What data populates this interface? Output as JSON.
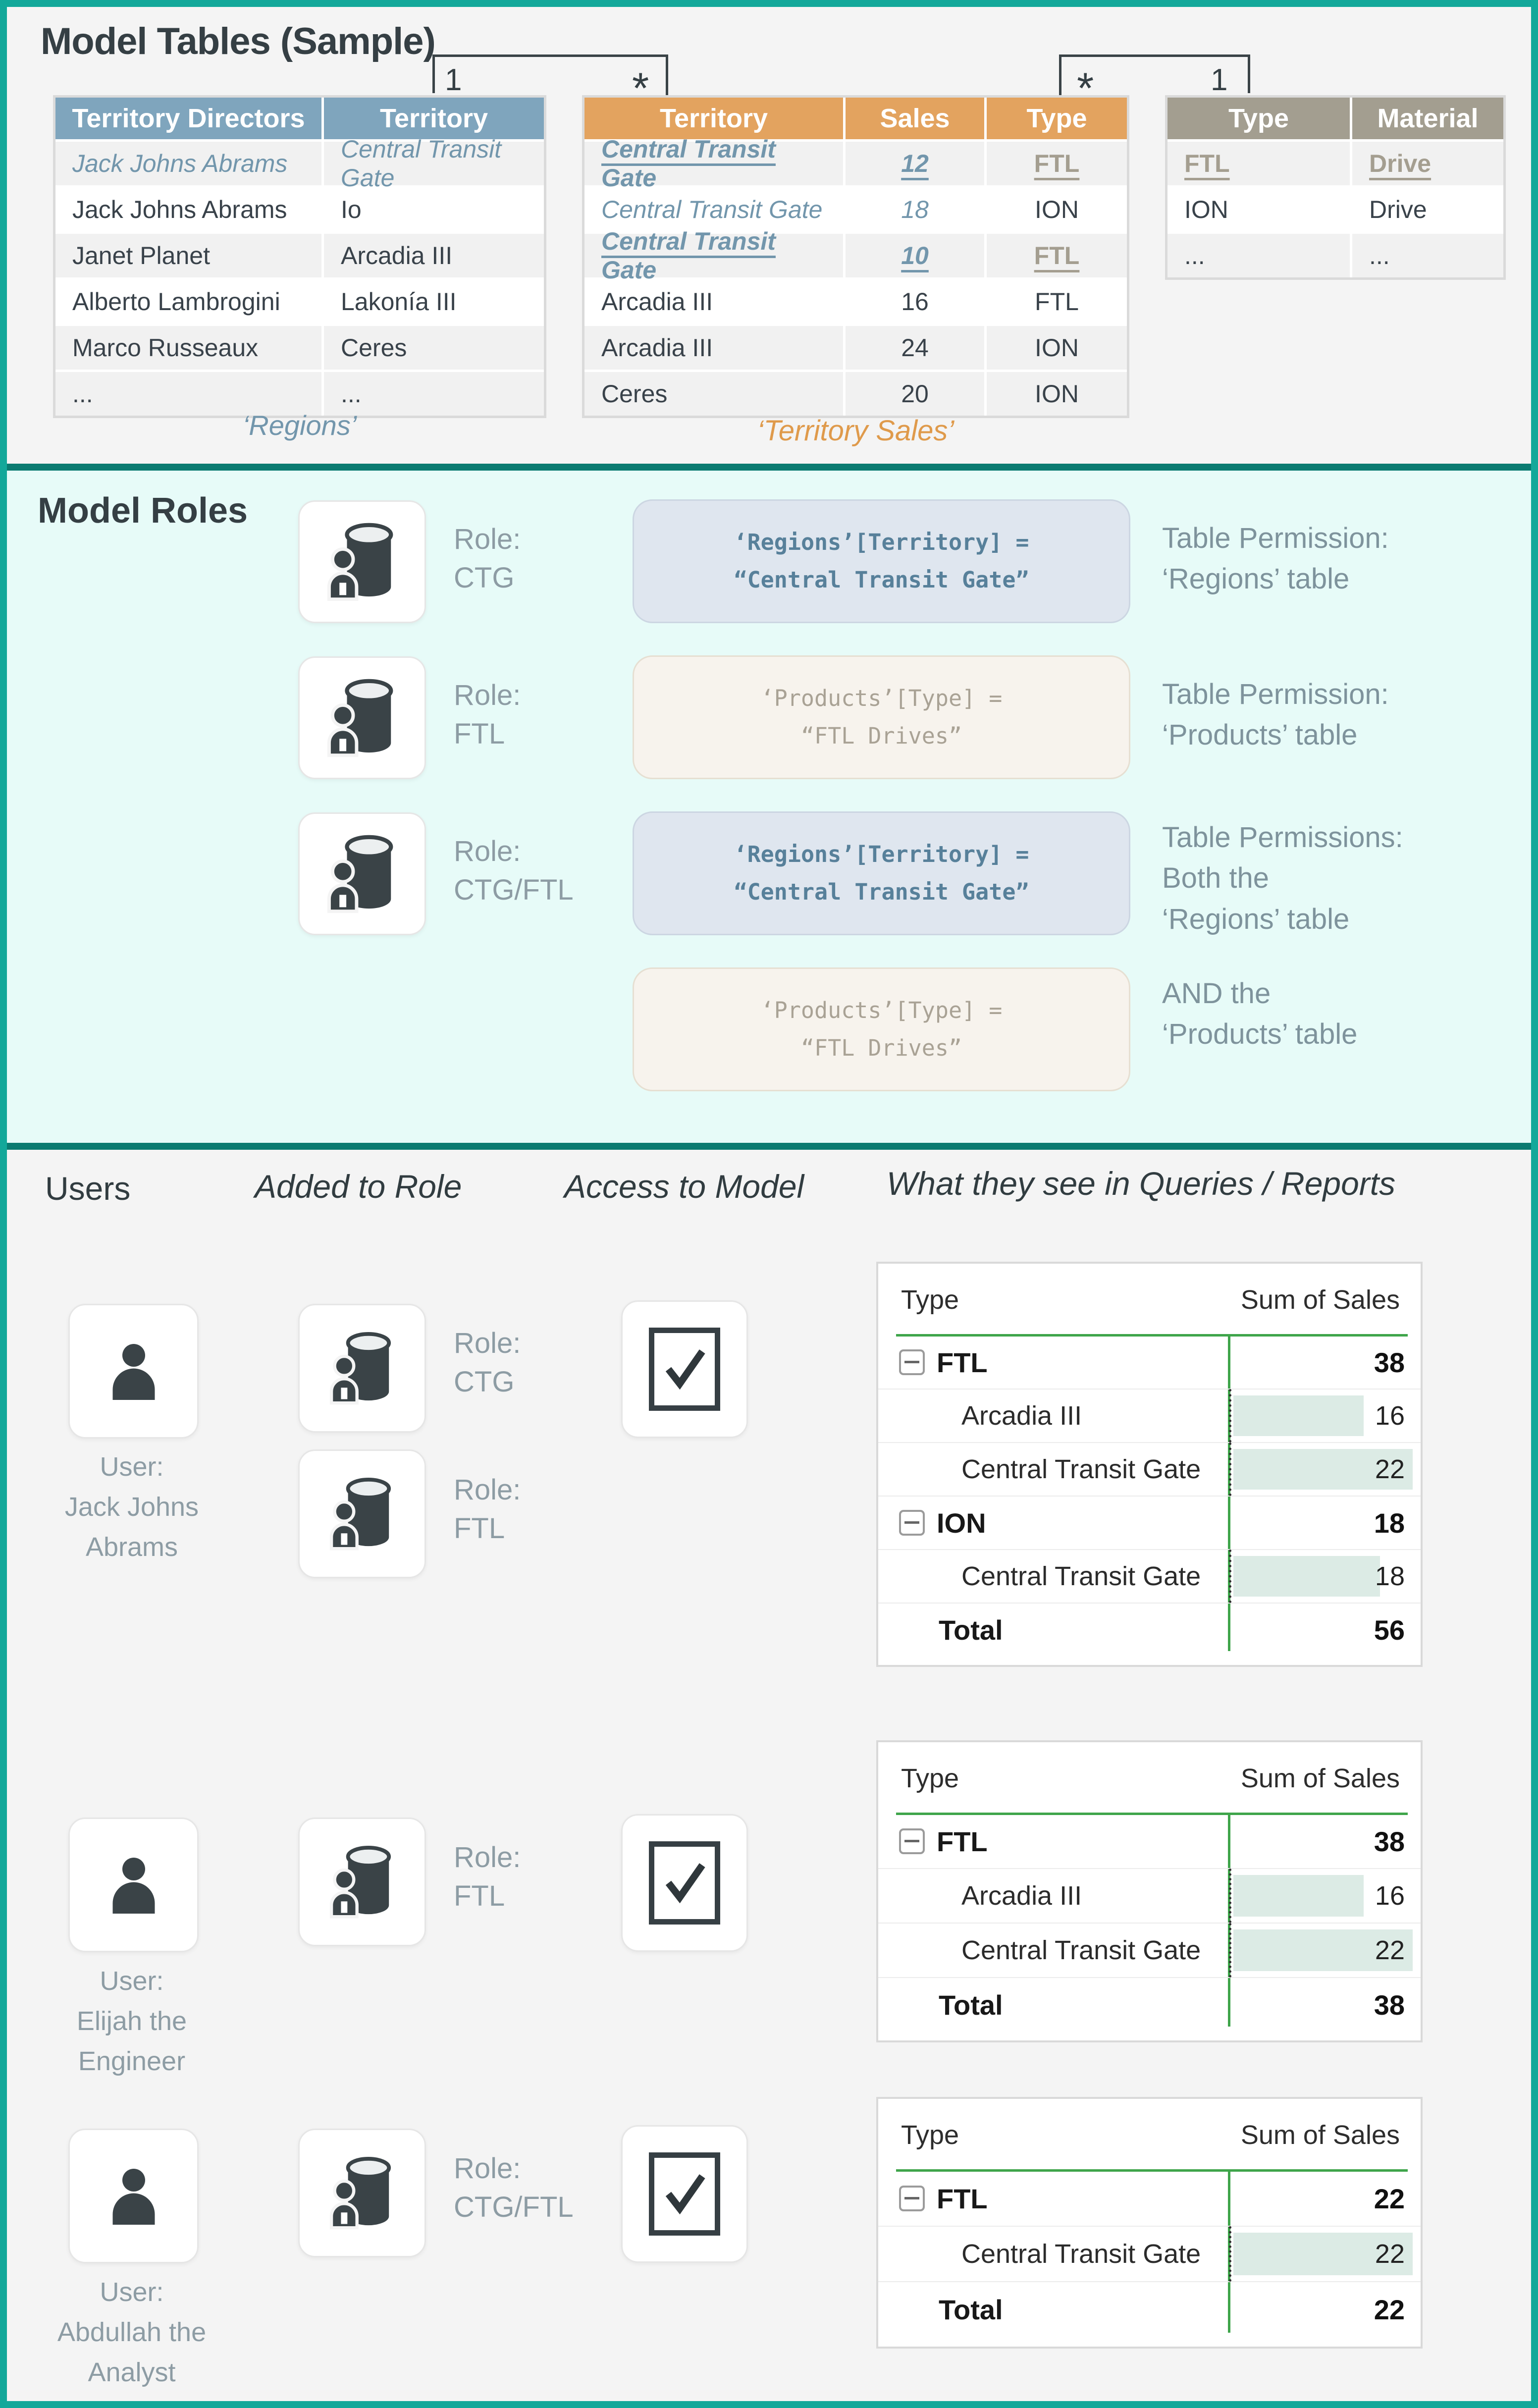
{
  "colors": {
    "outer_border": "#13a89a",
    "section_divider": "#0b7b71",
    "roles_background": "#e7fbf8",
    "regions_header": "#7fa5bd",
    "sales_header": "#e3a35f",
    "products_header": "#a39e90",
    "highlight_blue": "#7296ac",
    "highlight_tan": "#a49e90",
    "caption_orange": "#df9a4b",
    "matrix_green": "#3fa54b",
    "matrix_bar": "#dcebe5"
  },
  "tables": {
    "title": "Model Tables (Sample)",
    "connectors": {
      "one_left": "1",
      "many_left": "*",
      "many_right": "*",
      "one_right": "1"
    },
    "regions": {
      "headers": [
        "Territory Directors",
        "Territory"
      ],
      "rows": [
        [
          "Jack Johns Abrams",
          "Central Transit Gate"
        ],
        [
          "Jack Johns Abrams",
          "Io"
        ],
        [
          "Janet Planet",
          "Arcadia III"
        ],
        [
          "Alberto Lambrogini",
          "Lakonía III"
        ],
        [
          "Marco Russeaux",
          "Ceres"
        ],
        [
          "...",
          "..."
        ]
      ],
      "caption": "‘Regions’"
    },
    "territory_sales": {
      "headers": [
        "Territory",
        "Sales",
        "Type"
      ],
      "rows": [
        [
          "Central Transit Gate",
          "12",
          "FTL"
        ],
        [
          "Central Transit Gate",
          "18",
          "ION"
        ],
        [
          "Central Transit Gate",
          "10",
          "FTL"
        ],
        [
          "Arcadia III",
          "16",
          "FTL"
        ],
        [
          "Arcadia III",
          "24",
          "ION"
        ],
        [
          "Ceres",
          "20",
          "ION"
        ]
      ],
      "caption": "‘Territory Sales’"
    },
    "products": {
      "headers": [
        "Type",
        "Material"
      ],
      "rows": [
        [
          "FTL",
          "Drive"
        ],
        [
          "ION",
          "Drive"
        ],
        [
          "...",
          "..."
        ]
      ]
    }
  },
  "roles": {
    "title": "Model Roles",
    "items": [
      {
        "label": "Role:",
        "name": "CTG"
      },
      {
        "label": "Role:",
        "name": "FTL"
      },
      {
        "label": "Role:",
        "name": "CTG/FTL"
      }
    ],
    "boxes": [
      {
        "line1": "‘Regions’[Territory] =",
        "line2": "“Central Transit Gate”"
      },
      {
        "line1": "‘Products’[Type] =",
        "line2": "“FTL Drives”"
      },
      {
        "line1": "‘Regions’[Territory] =",
        "line2": "“Central Transit Gate”"
      },
      {
        "line1": "‘Products’[Type] =",
        "line2": "“FTL Drives”"
      }
    ],
    "notes": [
      {
        "l0": "Table Permission:",
        "l1": "‘Regions’ table",
        "l2": ""
      },
      {
        "l0": "Table Permission:",
        "l1": "‘Products’ table",
        "l2": ""
      },
      {
        "l0": "Table Permissions:",
        "l1": "Both the",
        "l2": "‘Regions’ table"
      },
      {
        "l0": "AND the",
        "l1": "‘Products’ table",
        "l2": ""
      }
    ]
  },
  "users_section": {
    "headers": {
      "users": "Users",
      "added": "Added to Role",
      "access": "Access to Model",
      "reports": "What they see in Queries / Reports"
    },
    "users": [
      {
        "label": {
          "l0": "User:",
          "l1": "Jack Johns",
          "l2": "Abrams"
        },
        "roles": [
          {
            "label": "Role:",
            "name": "CTG"
          },
          {
            "label": "Role:",
            "name": "FTL"
          }
        ],
        "access": true,
        "report": {
          "columns": [
            "Type",
            "Sum of Sales"
          ],
          "rows": [
            {
              "label": "FTL",
              "value": 38,
              "kind": "group"
            },
            {
              "label": "Arcadia III",
              "value": 16,
              "kind": "detail"
            },
            {
              "label": "Central Transit Gate",
              "value": 22,
              "kind": "detail"
            },
            {
              "label": "ION",
              "value": 18,
              "kind": "group"
            },
            {
              "label": "Central Transit Gate",
              "value": 18,
              "kind": "detail"
            },
            {
              "label": "Total",
              "value": 56,
              "kind": "total"
            }
          ]
        }
      },
      {
        "label": {
          "l0": "User:",
          "l1": "Elijah the",
          "l2": "Engineer"
        },
        "roles": [
          {
            "label": "Role:",
            "name": "FTL"
          }
        ],
        "access": true,
        "report": {
          "columns": [
            "Type",
            "Sum of Sales"
          ],
          "rows": [
            {
              "label": "FTL",
              "value": 38,
              "kind": "group"
            },
            {
              "label": "Arcadia III",
              "value": 16,
              "kind": "detail"
            },
            {
              "label": "Central Transit Gate",
              "value": 22,
              "kind": "detail"
            },
            {
              "label": "Total",
              "value": 38,
              "kind": "total"
            }
          ]
        }
      },
      {
        "label": {
          "l0": "User:",
          "l1": "Abdullah the",
          "l2": "Analyst"
        },
        "roles": [
          {
            "label": "Role:",
            "name": "CTG/FTL"
          }
        ],
        "access": true,
        "report": {
          "columns": [
            "Type",
            "Sum of Sales"
          ],
          "rows": [
            {
              "label": "FTL",
              "value": 22,
              "kind": "group"
            },
            {
              "label": "Central Transit Gate",
              "value": 22,
              "kind": "detail"
            },
            {
              "label": "Total",
              "value": 22,
              "kind": "total"
            }
          ]
        }
      }
    ]
  }
}
